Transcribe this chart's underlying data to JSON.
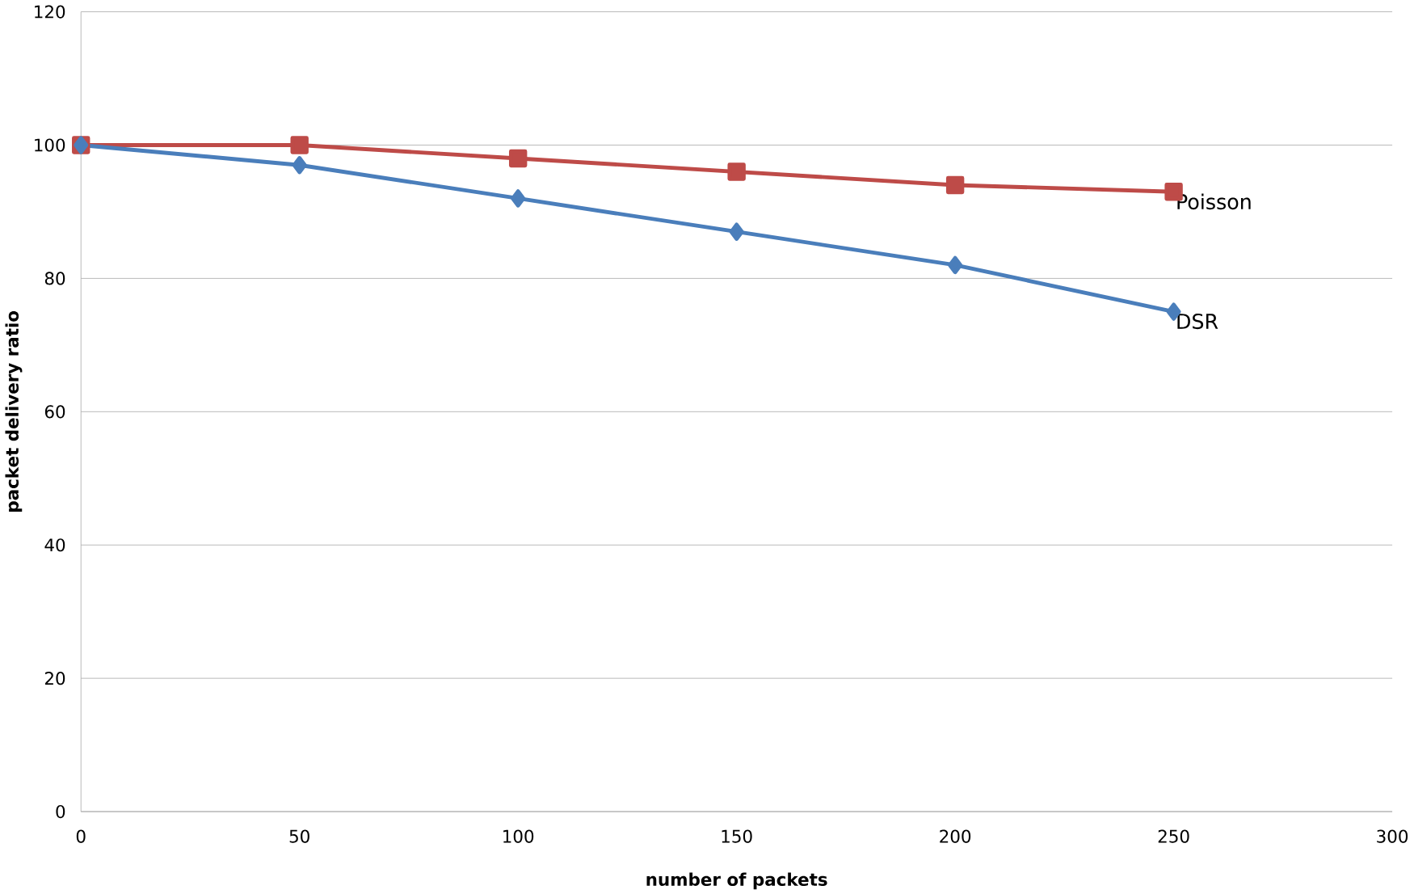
{
  "chart_data": {
    "type": "line",
    "xlabel": "number of packets",
    "ylabel": "packet delivery ratio",
    "x": [
      0,
      50,
      100,
      150,
      200,
      250
    ],
    "series": [
      {
        "name": "Poisson",
        "color": "#be4b48",
        "marker": "square",
        "values": [
          100,
          100,
          98,
          96,
          94,
          93
        ]
      },
      {
        "name": "DSR",
        "color": "#4a7ebb",
        "marker": "diamond",
        "values": [
          100,
          97,
          92,
          87,
          82,
          75
        ]
      }
    ],
    "xlim": [
      0,
      300
    ],
    "ylim": [
      0,
      120
    ],
    "xticks": [
      0,
      50,
      100,
      150,
      200,
      250,
      300
    ],
    "yticks": [
      0,
      20,
      40,
      60,
      80,
      100,
      120
    ],
    "grid": "y",
    "legend": false
  }
}
